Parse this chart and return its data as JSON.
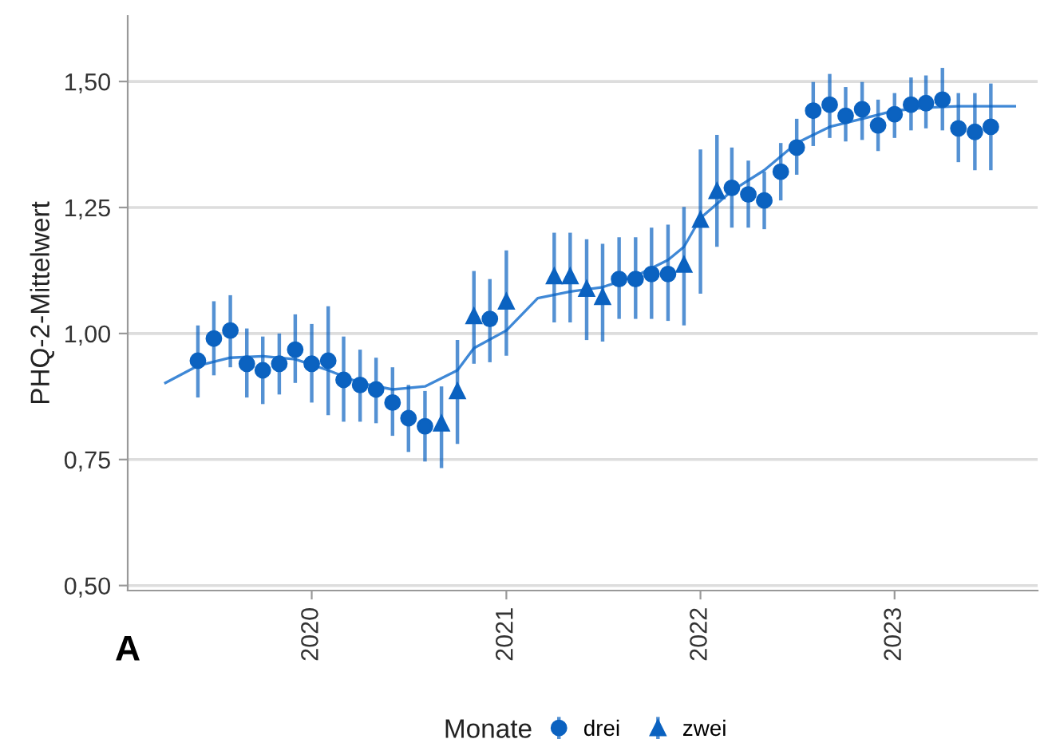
{
  "chart_data": {
    "type": "scatter",
    "ylabel": "PHQ-2-Mittelwert",
    "legend_title": "Monate",
    "annotations": [
      "A"
    ],
    "xlim": [
      "2019-01-20",
      "2023-09-27"
    ],
    "ylim": [
      0.49,
      1.63
    ],
    "xticks": [
      {
        "value": "2020-01-01",
        "label": "2020"
      },
      {
        "value": "2021-01-01",
        "label": "2021"
      },
      {
        "value": "2022-01-01",
        "label": "2022"
      },
      {
        "value": "2023-01-01",
        "label": "2023"
      }
    ],
    "yticks": [
      {
        "value": 0.5,
        "label": "0,50"
      },
      {
        "value": 0.75,
        "label": "0,75"
      },
      {
        "value": 1.0,
        "label": "1,00"
      },
      {
        "value": 1.25,
        "label": "1,25"
      },
      {
        "value": 1.5,
        "label": "1,50"
      }
    ],
    "grid": "y",
    "legend": "bottom",
    "series": [
      {
        "name": "drei",
        "marker": "circle",
        "color": "#0b62c0",
        "x": [
          "2019-06",
          "2019-07",
          "2019-08",
          "2019-09",
          "2019-10",
          "2019-11",
          "2019-12",
          "2020-01",
          "2020-02",
          "2020-03",
          "2020-04",
          "2020-05",
          "2020-06",
          "2020-07",
          "2020-08",
          "2020-12",
          "2021-08",
          "2021-09",
          "2021-10",
          "2021-11",
          "2022-03",
          "2022-04",
          "2022-05",
          "2022-06",
          "2022-07",
          "2022-08",
          "2022-09",
          "2022-10",
          "2022-11",
          "2022-12",
          "2023-01",
          "2023-02",
          "2023-03",
          "2023-04",
          "2023-05",
          "2023-06",
          "2023-07"
        ],
        "values": [
          0.946,
          0.99,
          1.006,
          0.94,
          0.927,
          0.94,
          0.968,
          0.94,
          0.946,
          0.908,
          0.898,
          0.889,
          0.863,
          0.832,
          0.816,
          1.029,
          1.108,
          1.108,
          1.118,
          1.118,
          1.289,
          1.276,
          1.264,
          1.321,
          1.369,
          1.442,
          1.454,
          1.432,
          1.445,
          1.413,
          1.435,
          1.454,
          1.457,
          1.464,
          1.407,
          1.4,
          1.41
        ],
        "errors": [
          [
            0.873,
            1.016
          ],
          [
            0.917,
            1.064
          ],
          [
            0.933,
            1.076
          ],
          [
            0.873,
            1.01
          ],
          [
            0.86,
            0.994
          ],
          [
            0.879,
            1.0
          ],
          [
            0.902,
            1.038
          ],
          [
            0.863,
            1.019
          ],
          [
            0.838,
            1.054
          ],
          [
            0.825,
            0.994
          ],
          [
            0.825,
            0.968
          ],
          [
            0.822,
            0.952
          ],
          [
            0.797,
            0.933
          ],
          [
            0.765,
            0.898
          ],
          [
            0.746,
            0.886
          ],
          [
            0.943,
            1.108
          ],
          [
            1.029,
            1.191
          ],
          [
            1.029,
            1.191
          ],
          [
            1.029,
            1.21
          ],
          [
            1.025,
            1.216
          ],
          [
            1.21,
            1.369
          ],
          [
            1.21,
            1.343
          ],
          [
            1.207,
            1.321
          ],
          [
            1.264,
            1.378
          ],
          [
            1.315,
            1.426
          ],
          [
            1.372,
            1.499
          ],
          [
            1.388,
            1.515
          ],
          [
            1.381,
            1.489
          ],
          [
            1.384,
            1.499
          ],
          [
            1.362,
            1.464
          ],
          [
            1.388,
            1.477
          ],
          [
            1.403,
            1.508
          ],
          [
            1.407,
            1.512
          ],
          [
            1.403,
            1.527
          ],
          [
            1.34,
            1.477
          ],
          [
            1.324,
            1.477
          ],
          [
            1.324,
            1.496
          ]
        ]
      },
      {
        "name": "zwei",
        "marker": "triangle",
        "color": "#0b62c0",
        "x": [
          "2020-09",
          "2020-10",
          "2020-11",
          "2021-01",
          "2021-04",
          "2021-05",
          "2021-06",
          "2021-07",
          "2021-12",
          "2022-01",
          "2022-02"
        ],
        "values": [
          0.822,
          0.886,
          1.035,
          1.064,
          1.114,
          1.114,
          1.089,
          1.073,
          1.137,
          1.226,
          1.283
        ],
        "errors": [
          [
            0.733,
            0.895
          ],
          [
            0.781,
            0.987
          ],
          [
            0.94,
            1.124
          ],
          [
            0.956,
            1.165
          ],
          [
            1.022,
            1.2
          ],
          [
            1.022,
            1.2
          ],
          [
            0.987,
            1.187
          ],
          [
            0.984,
            1.178
          ],
          [
            1.016,
            1.251
          ],
          [
            1.079,
            1.365
          ],
          [
            1.172,
            1.394
          ]
        ]
      },
      {
        "type": "line",
        "color": "#3f88d6",
        "marker": "none",
        "line_style": "solid",
        "x": [
          "2019-04",
          "2019-06",
          "2019-08",
          "2019-10",
          "2019-12",
          "2020-02",
          "2020-04",
          "2020-06",
          "2020-08",
          "2020-10",
          "2020-11",
          "2021-01",
          "2021-03",
          "2021-05",
          "2021-07",
          "2021-09",
          "2021-11",
          "2021-12",
          "2022-01",
          "2022-03",
          "2022-05",
          "2022-07",
          "2022-09",
          "2022-11",
          "2023-01",
          "2023-03",
          "2023-05",
          "2023-08-15"
        ],
        "values": [
          0.902,
          0.936,
          0.952,
          0.955,
          0.949,
          0.927,
          0.902,
          0.889,
          0.895,
          0.927,
          0.971,
          1.006,
          1.07,
          1.083,
          1.092,
          1.114,
          1.146,
          1.172,
          1.229,
          1.283,
          1.324,
          1.378,
          1.41,
          1.426,
          1.442,
          1.448,
          1.451,
          1.451
        ]
      }
    ]
  }
}
